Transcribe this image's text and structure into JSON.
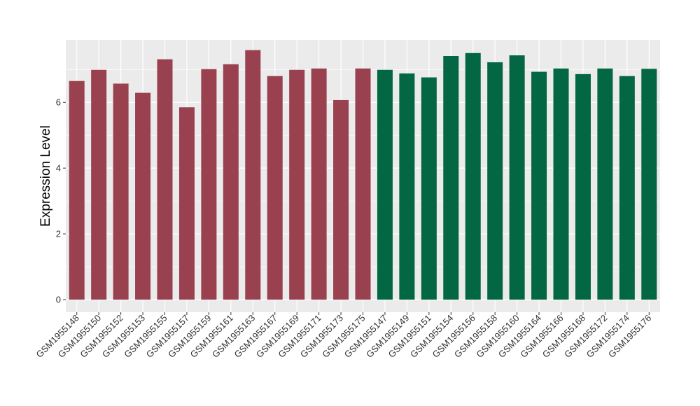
{
  "chart_data": {
    "type": "bar",
    "title": "",
    "xlabel": "",
    "ylabel": "Expression Level",
    "ylim": [
      0,
      7.9
    ],
    "yticks": [
      0,
      2,
      4,
      6
    ],
    "grid": true,
    "legend": "none",
    "categories": [
      "GSM1955148",
      "GSM1955150",
      "GSM1955152",
      "GSM1955153",
      "GSM1955155",
      "GSM1955157",
      "GSM1955159",
      "GSM1955161",
      "GSM1955163",
      "GSM1955167",
      "GSM1955169",
      "GSM1955171",
      "GSM1955173",
      "GSM1955175",
      "GSM1955147",
      "GSM1955149",
      "GSM1955151",
      "GSM1955154",
      "GSM1955156",
      "GSM1955158",
      "GSM1955160",
      "GSM1955164",
      "GSM1955166",
      "GSM1955168",
      "GSM1955172",
      "GSM1955174",
      "GSM1955176"
    ],
    "values": [
      6.65,
      6.99,
      6.57,
      6.29,
      7.31,
      5.85,
      7.01,
      7.16,
      7.59,
      6.8,
      6.99,
      7.03,
      6.07,
      7.03,
      6.99,
      6.88,
      6.76,
      7.41,
      7.5,
      7.22,
      7.43,
      6.93,
      7.03,
      6.86,
      7.03,
      6.8,
      7.02
    ],
    "colors": [
      "#9a4150",
      "#9a4150",
      "#9a4150",
      "#9a4150",
      "#9a4150",
      "#9a4150",
      "#9a4150",
      "#9a4150",
      "#9a4150",
      "#9a4150",
      "#9a4150",
      "#9a4150",
      "#9a4150",
      "#9a4150",
      "#046744",
      "#046744",
      "#046744",
      "#046744",
      "#046744",
      "#046744",
      "#046744",
      "#046744",
      "#046744",
      "#046744",
      "#046744",
      "#046744",
      "#046744"
    ],
    "panel_color": "#ebebeb",
    "gridline_color": "#ffffff"
  }
}
